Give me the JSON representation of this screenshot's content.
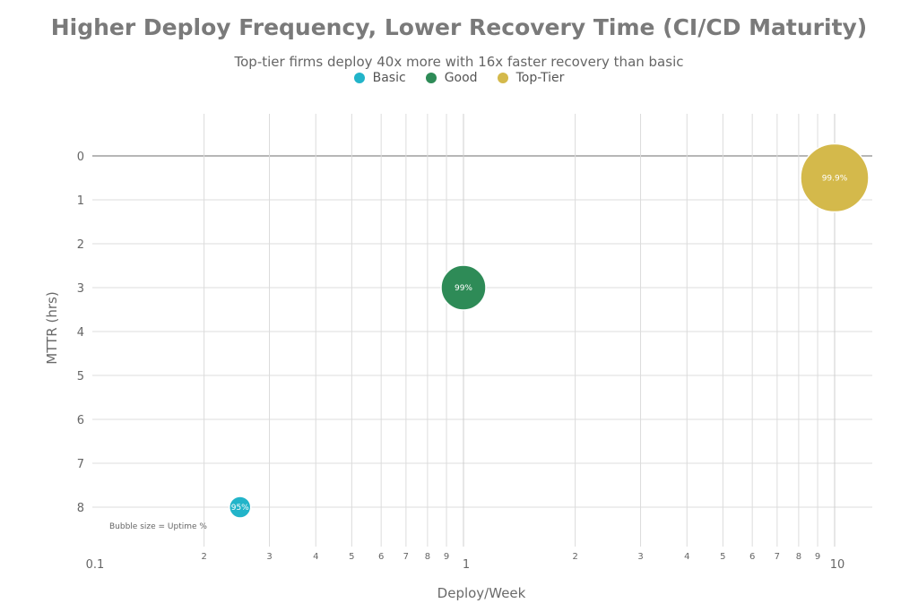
{
  "chart_data": {
    "type": "scatter",
    "title": "Higher Deploy Frequency, Lower Recovery Time (CI/CD Maturity)",
    "subtitle": "Top-tier firms deploy 40x more with 16x faster recovery than basic",
    "xlabel": "Deploy/Week",
    "ylabel": "MTTR (hrs)",
    "x_scale": "log",
    "xlim": [
      0.1,
      11
    ],
    "ylim": [
      0,
      8.9
    ],
    "y_inverted": true,
    "grid": true,
    "legend_position": "top-center",
    "annotation": "Bubble size = Uptime %",
    "series": [
      {
        "name": "Basic",
        "color": "#22b4c9",
        "x": 0.25,
        "y": 8,
        "label": "95%"
      },
      {
        "name": "Good",
        "color": "#2e8b57",
        "x": 1,
        "y": 3,
        "label": "99%"
      },
      {
        "name": "Top-Tier",
        "color": "#d4b94b",
        "x": 10,
        "y": 0.5,
        "label": "99.9%"
      }
    ],
    "x_major_ticks": [
      {
        "value": 0.1,
        "label": "0.1"
      },
      {
        "value": 1,
        "label": "1"
      },
      {
        "value": 10,
        "label": "10"
      }
    ],
    "x_minor_ticks": [
      {
        "value": 0.2,
        "label": "2"
      },
      {
        "value": 0.3,
        "label": "3"
      },
      {
        "value": 0.4,
        "label": "4"
      },
      {
        "value": 0.5,
        "label": "5"
      },
      {
        "value": 0.6,
        "label": "6"
      },
      {
        "value": 0.7,
        "label": "7"
      },
      {
        "value": 0.8,
        "label": "8"
      },
      {
        "value": 0.9,
        "label": "9"
      },
      {
        "value": 2,
        "label": "2"
      },
      {
        "value": 3,
        "label": "3"
      },
      {
        "value": 4,
        "label": "4"
      },
      {
        "value": 5,
        "label": "5"
      },
      {
        "value": 6,
        "label": "6"
      },
      {
        "value": 7,
        "label": "7"
      },
      {
        "value": 8,
        "label": "8"
      },
      {
        "value": 9,
        "label": "9"
      }
    ],
    "y_ticks": [
      {
        "value": 0,
        "label": "0"
      },
      {
        "value": 1,
        "label": "1"
      },
      {
        "value": 2,
        "label": "2"
      },
      {
        "value": 3,
        "label": "3"
      },
      {
        "value": 4,
        "label": "4"
      },
      {
        "value": 5,
        "label": "5"
      },
      {
        "value": 6,
        "label": "6"
      },
      {
        "value": 7,
        "label": "7"
      },
      {
        "value": 8,
        "label": "8"
      }
    ]
  }
}
